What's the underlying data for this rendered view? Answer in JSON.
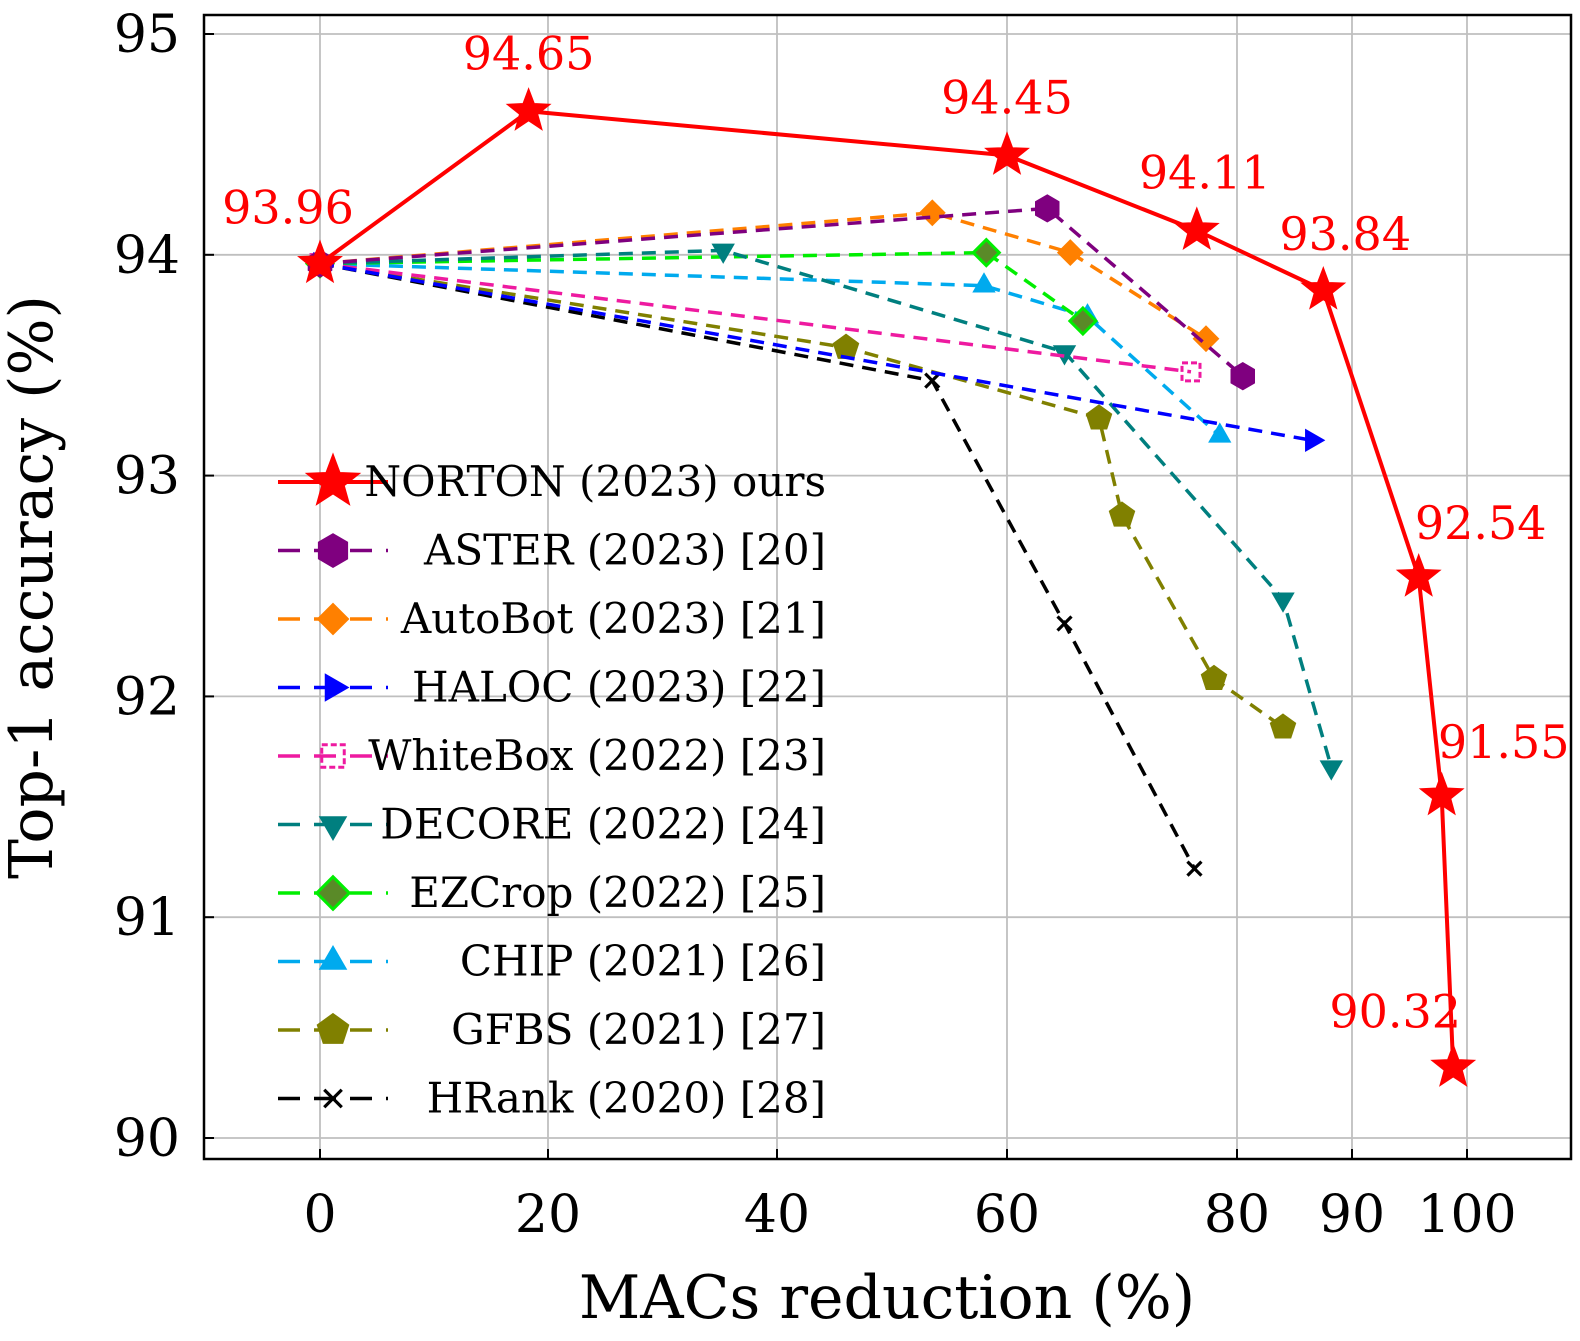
{
  "chart_data": {
    "type": "line",
    "title": "",
    "xlabel": "MACs reduction (%)",
    "ylabel": "Top-1 accuracy (%)",
    "xlim": [
      -10,
      110
    ],
    "ylim": [
      89.9,
      95.1
    ],
    "x_ticks": [
      0,
      20,
      40,
      60,
      80,
      90,
      100
    ],
    "x_tick_labels": [
      "0",
      "20",
      "40",
      "60",
      "80",
      "90",
      "100"
    ],
    "y_ticks": [
      90,
      91,
      92,
      93,
      94,
      95
    ],
    "y_tick_labels": [
      "90",
      "91",
      "92",
      "93",
      "94",
      "95"
    ],
    "grid": true,
    "legend_position": "left-center",
    "series": [
      {
        "name": "NORTON (2023) ours",
        "color": "#ff0000",
        "dash": "solid",
        "marker": "star",
        "points": [
          [
            0,
            93.96
          ],
          [
            18.3,
            94.65
          ],
          [
            60,
            94.45
          ],
          [
            76.5,
            94.11
          ],
          [
            87.5,
            93.84
          ],
          [
            95.8,
            92.54
          ],
          [
            97.8,
            91.55
          ],
          [
            98.8,
            90.32
          ]
        ],
        "point_labels": [
          "93.96",
          "94.65",
          "94.45",
          "94.11",
          "93.84",
          "92.54",
          "91.55",
          "90.32"
        ]
      },
      {
        "name": "ASTER (2023) [20]",
        "color": "#7f007f",
        "dash": "dashed",
        "marker": "hexagon",
        "points": [
          [
            0,
            93.96
          ],
          [
            63.5,
            94.21
          ],
          [
            80.5,
            93.45
          ]
        ]
      },
      {
        "name": "AutoBot (2023) [21]",
        "color": "#ff8000",
        "dash": "dashed",
        "marker": "diamond-filled",
        "points": [
          [
            0,
            93.96
          ],
          [
            53.5,
            94.19
          ],
          [
            65.5,
            94.01
          ],
          [
            77.3,
            93.62
          ]
        ]
      },
      {
        "name": "HALOC (2023) [22]",
        "color": "#0000ff",
        "dash": "dashed",
        "marker": "triangle-right",
        "points": [
          [
            0,
            93.96
          ],
          [
            86.5,
            93.16
          ]
        ]
      },
      {
        "name": "WhiteBox (2022) [23]",
        "color": "#ee1aa0",
        "dash": "dashed",
        "marker": "open-square",
        "points": [
          [
            0,
            93.96
          ],
          [
            76,
            93.47
          ]
        ]
      },
      {
        "name": "DECORE (2022) [24]",
        "color": "#007f7f",
        "dash": "dashed",
        "marker": "triangle-down",
        "points": [
          [
            0,
            93.96
          ],
          [
            35.3,
            94.02
          ],
          [
            65,
            93.56
          ],
          [
            84,
            92.44
          ],
          [
            88.2,
            91.68
          ]
        ]
      },
      {
        "name": "EZCrop (2022) [25]",
        "color": "#00ee00",
        "dash": "dashed",
        "marker": "diamond-outline",
        "points": [
          [
            0,
            93.96
          ],
          [
            58.2,
            94.01
          ],
          [
            66.6,
            93.7
          ]
        ]
      },
      {
        "name": "CHIP (2021) [26]",
        "color": "#00aaee",
        "dash": "dashed",
        "marker": "triangle-up",
        "points": [
          [
            0,
            93.96
          ],
          [
            58,
            93.86
          ],
          [
            67,
            93.72
          ],
          [
            78.5,
            93.18
          ]
        ]
      },
      {
        "name": "GFBS (2021) [27]",
        "color": "#808000",
        "dash": "dashed",
        "marker": "pentagon",
        "points": [
          [
            0,
            93.96
          ],
          [
            46,
            93.58
          ],
          [
            68,
            93.26
          ],
          [
            70,
            92.82
          ],
          [
            78,
            92.08
          ],
          [
            84,
            91.86
          ]
        ]
      },
      {
        "name": "HRank (2020) [28]",
        "color": "#000000",
        "dash": "dashed",
        "marker": "cross",
        "points": [
          [
            0,
            93.96
          ],
          [
            53.5,
            93.43
          ],
          [
            65,
            92.33
          ],
          [
            76.3,
            91.22
          ]
        ]
      }
    ]
  }
}
